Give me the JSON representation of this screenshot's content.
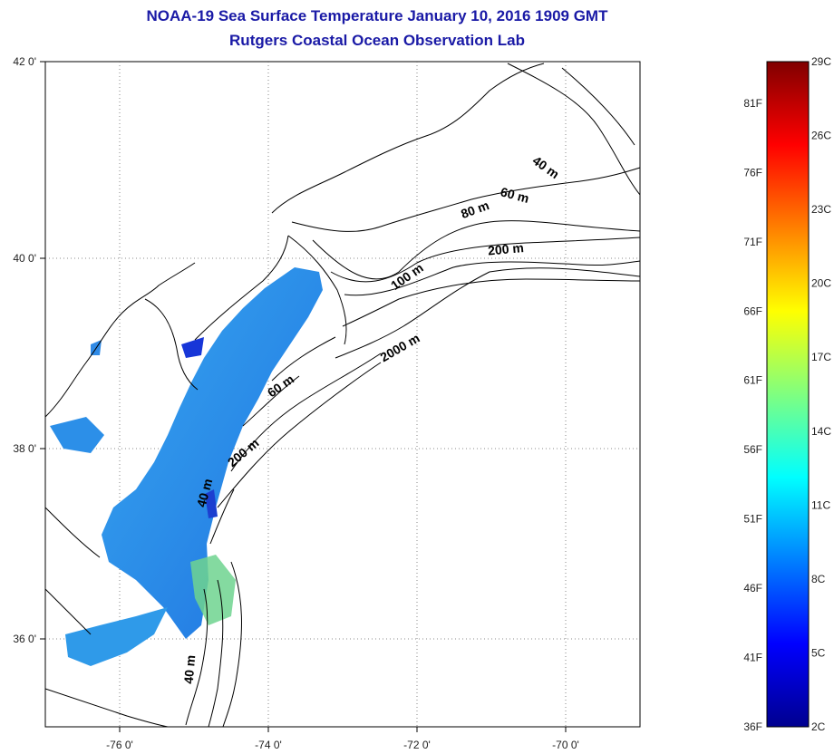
{
  "title": "NOAA-19 Sea Surface Temperature January 10, 2016 1909 GMT",
  "subtitle": "Rutgers Coastal Ocean Observation Lab",
  "map": {
    "lon_range": [
      -77,
      -69
    ],
    "lat_range": [
      35,
      42
    ],
    "lon_ticks": [
      {
        "value": -76,
        "label": "-76 0'"
      },
      {
        "value": -74,
        "label": "-74 0'"
      },
      {
        "value": -72,
        "label": "-72 0'"
      },
      {
        "value": -70,
        "label": "-70 0'"
      }
    ],
    "lat_ticks": [
      {
        "value": 42,
        "label": "42 0'"
      },
      {
        "value": 40,
        "label": "40 0'"
      },
      {
        "value": 38,
        "label": "38 0'"
      },
      {
        "value": 36,
        "label": "36 0'"
      }
    ],
    "grid": "dotted",
    "isobath_labels": [
      {
        "text": "40 m",
        "lon": -70.3,
        "lat": 40.85,
        "angle": 35
      },
      {
        "text": "60 m",
        "lon": -70.7,
        "lat": 40.55,
        "angle": 15
      },
      {
        "text": "80 m",
        "lon": -71.2,
        "lat": 40.4,
        "angle": -20
      },
      {
        "text": "200 m",
        "lon": -70.8,
        "lat": 39.98,
        "angle": -5
      },
      {
        "text": "100 m",
        "lon": -72.1,
        "lat": 39.7,
        "angle": -35
      },
      {
        "text": "2000 m",
        "lon": -72.2,
        "lat": 38.95,
        "angle": -30
      },
      {
        "text": "60 m",
        "lon": -73.8,
        "lat": 38.55,
        "angle": -35
      },
      {
        "text": "200 m",
        "lon": -74.3,
        "lat": 37.85,
        "angle": -40
      },
      {
        "text": "40 m",
        "lon": -74.8,
        "lat": 37.45,
        "angle": -75
      },
      {
        "text": "40 m",
        "lon": -75.0,
        "lat": 35.6,
        "angle": -85
      }
    ]
  },
  "colorbar": {
    "celsius_range": [
      2,
      29
    ],
    "fahrenheit_range": [
      36,
      84
    ],
    "celsius_labels": [
      "29C",
      "26C",
      "23C",
      "20C",
      "17C",
      "14C",
      "11C",
      "8C",
      "5C",
      "2C"
    ],
    "celsius_values": [
      29,
      26,
      23,
      20,
      17,
      14,
      11,
      8,
      5,
      2
    ],
    "fahrenheit_labels": [
      "81F",
      "76F",
      "71F",
      "66F",
      "61F",
      "56F",
      "51F",
      "46F",
      "41F",
      "36F"
    ],
    "fahrenheit_values": [
      81,
      76,
      71,
      66,
      61,
      56,
      51,
      46,
      41,
      36
    ],
    "colormap": "jet"
  }
}
